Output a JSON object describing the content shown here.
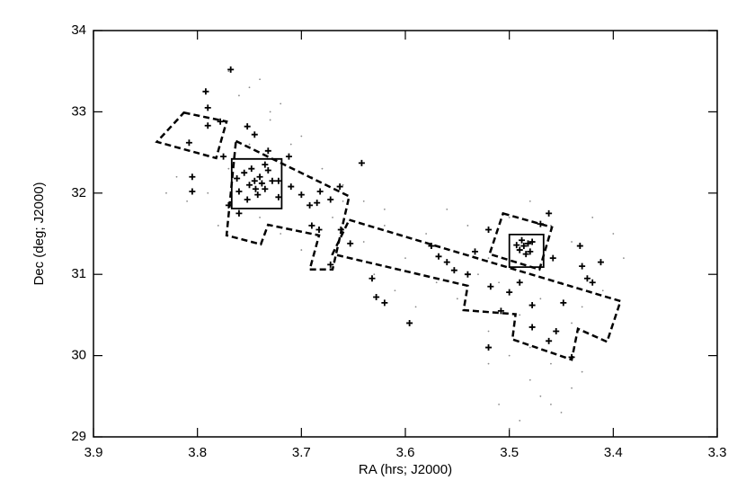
{
  "chart_data": {
    "type": "scatter",
    "xlabel": "RA (hrs; J2000)",
    "ylabel": "Dec (deg; J2000)",
    "xlim": [
      3.9,
      3.3
    ],
    "ylim": [
      29,
      34
    ],
    "xticks": [
      3.9,
      3.8,
      3.7,
      3.6,
      3.5,
      3.4,
      3.3
    ],
    "yticks": [
      29,
      30,
      31,
      32,
      33,
      34
    ],
    "series": [
      {
        "marker": "dot",
        "color": "#8a8a8a",
        "x": [
          3.82,
          3.8,
          3.78,
          3.76,
          3.74,
          3.72,
          3.7,
          3.68,
          3.66,
          3.81,
          3.79,
          3.77,
          3.75,
          3.73,
          3.71,
          3.69,
          3.67,
          3.78,
          3.76,
          3.74,
          3.72,
          3.7,
          3.77,
          3.75,
          3.73,
          3.64,
          3.62,
          3.6,
          3.58,
          3.56,
          3.54,
          3.52,
          3.5,
          3.48,
          3.46,
          3.44,
          3.42,
          3.4,
          3.63,
          3.61,
          3.59,
          3.57,
          3.55,
          3.53,
          3.51,
          3.49,
          3.47,
          3.45,
          3.43,
          3.41,
          3.39,
          3.52,
          3.5,
          3.48,
          3.46,
          3.44,
          3.51,
          3.49,
          3.47,
          3.45,
          3.43,
          3.5,
          3.48,
          3.46,
          3.52,
          3.44,
          3.66,
          3.64,
          3.62,
          3.83
        ],
        "y": [
          32.2,
          32.5,
          32.9,
          33.2,
          33.4,
          33.1,
          32.7,
          32.3,
          31.9,
          31.9,
          32.0,
          32.3,
          32.6,
          32.9,
          32.6,
          32.2,
          31.7,
          31.6,
          31.8,
          31.7,
          31.5,
          31.3,
          33.5,
          33.3,
          33.0,
          31.9,
          31.6,
          31.2,
          31.5,
          31.8,
          31.6,
          31.2,
          31.7,
          31.9,
          31.6,
          31.4,
          31.7,
          31.5,
          31.0,
          30.8,
          30.6,
          30.9,
          30.7,
          31.0,
          30.9,
          30.5,
          30.7,
          30.9,
          30.6,
          30.8,
          31.2,
          30.3,
          30.0,
          29.7,
          29.9,
          29.6,
          29.4,
          29.2,
          29.5,
          29.3,
          29.8,
          29.1,
          30.1,
          29.4,
          29.9,
          30.4,
          32.1,
          31.4,
          31.8,
          32.0
        ]
      },
      {
        "marker": "cross",
        "color": "#000000",
        "x": [
          3.768,
          3.792,
          3.79,
          3.778,
          3.79,
          3.752,
          3.808,
          3.745,
          3.732,
          3.712,
          3.775,
          3.805,
          3.805,
          3.722,
          3.71,
          3.7,
          3.692,
          3.685,
          3.682,
          3.672,
          3.69,
          3.663,
          3.642,
          3.683,
          3.662,
          3.653,
          3.672,
          3.632,
          3.628,
          3.62,
          3.596,
          3.568,
          3.56,
          3.553,
          3.575,
          3.54,
          3.533,
          3.52,
          3.518,
          3.508,
          3.52,
          3.5,
          3.49,
          3.478,
          3.47,
          3.458,
          3.448,
          3.455,
          3.462,
          3.462,
          3.44,
          3.43,
          3.425,
          3.42,
          3.412,
          3.432,
          3.478,
          3.745,
          3.74,
          3.75,
          3.735,
          3.755,
          3.742,
          3.732,
          3.76,
          3.738,
          3.748,
          3.728,
          3.752,
          3.762,
          3.735,
          3.744,
          3.77,
          3.76,
          3.722,
          3.486,
          3.49,
          3.482,
          3.488,
          3.48,
          3.493,
          3.484,
          3.478
        ],
        "y": [
          33.52,
          33.25,
          33.05,
          32.88,
          32.83,
          32.82,
          32.62,
          32.72,
          32.52,
          32.45,
          32.45,
          32.2,
          32.02,
          32.15,
          32.08,
          31.98,
          31.85,
          31.88,
          32.02,
          31.92,
          31.6,
          32.08,
          32.37,
          31.55,
          31.55,
          31.38,
          31.12,
          30.95,
          30.72,
          30.65,
          30.4,
          31.22,
          31.15,
          31.05,
          31.35,
          31.0,
          31.28,
          31.55,
          30.85,
          30.55,
          30.1,
          30.78,
          30.9,
          30.62,
          31.62,
          31.2,
          30.65,
          30.3,
          30.18,
          31.75,
          29.98,
          31.1,
          30.95,
          30.9,
          31.15,
          31.35,
          30.35,
          32.15,
          32.2,
          32.1,
          32.05,
          32.25,
          31.98,
          32.28,
          32.02,
          32.12,
          32.3,
          32.15,
          31.92,
          32.18,
          32.35,
          32.05,
          31.85,
          31.75,
          31.95,
          31.35,
          31.3,
          31.38,
          31.42,
          31.28,
          31.36,
          31.25,
          31.4
        ]
      }
    ],
    "regions": [
      {
        "style": "dashed",
        "x": [
          3.813,
          3.772,
          3.782,
          3.839
        ],
        "y": [
          32.99,
          32.88,
          32.43,
          32.63
        ]
      },
      {
        "style": "dashed",
        "x": [
          3.763,
          3.654,
          3.67,
          3.692,
          3.683,
          3.732,
          3.739,
          3.772
        ],
        "y": [
          32.64,
          31.96,
          31.06,
          31.06,
          31.48,
          31.61,
          31.37,
          31.48
        ]
      },
      {
        "style": "dashed",
        "x": [
          3.654,
          3.393,
          3.406,
          3.434,
          3.44,
          3.497,
          3.494,
          3.544,
          3.54,
          3.67
        ],
        "y": [
          31.67,
          30.67,
          30.17,
          30.33,
          29.95,
          30.2,
          30.51,
          30.56,
          30.86,
          31.25
        ]
      },
      {
        "style": "dashed",
        "x": [
          3.506,
          3.459,
          3.471,
          3.519
        ],
        "y": [
          31.75,
          31.58,
          31.06,
          31.25
        ]
      },
      {
        "style": "solid",
        "x": [
          3.767,
          3.719,
          3.719,
          3.767
        ],
        "y": [
          32.42,
          32.42,
          31.81,
          31.81
        ]
      },
      {
        "style": "solid",
        "x": [
          3.5,
          3.467,
          3.467,
          3.5
        ],
        "y": [
          31.49,
          31.49,
          31.09,
          31.09
        ]
      }
    ]
  }
}
